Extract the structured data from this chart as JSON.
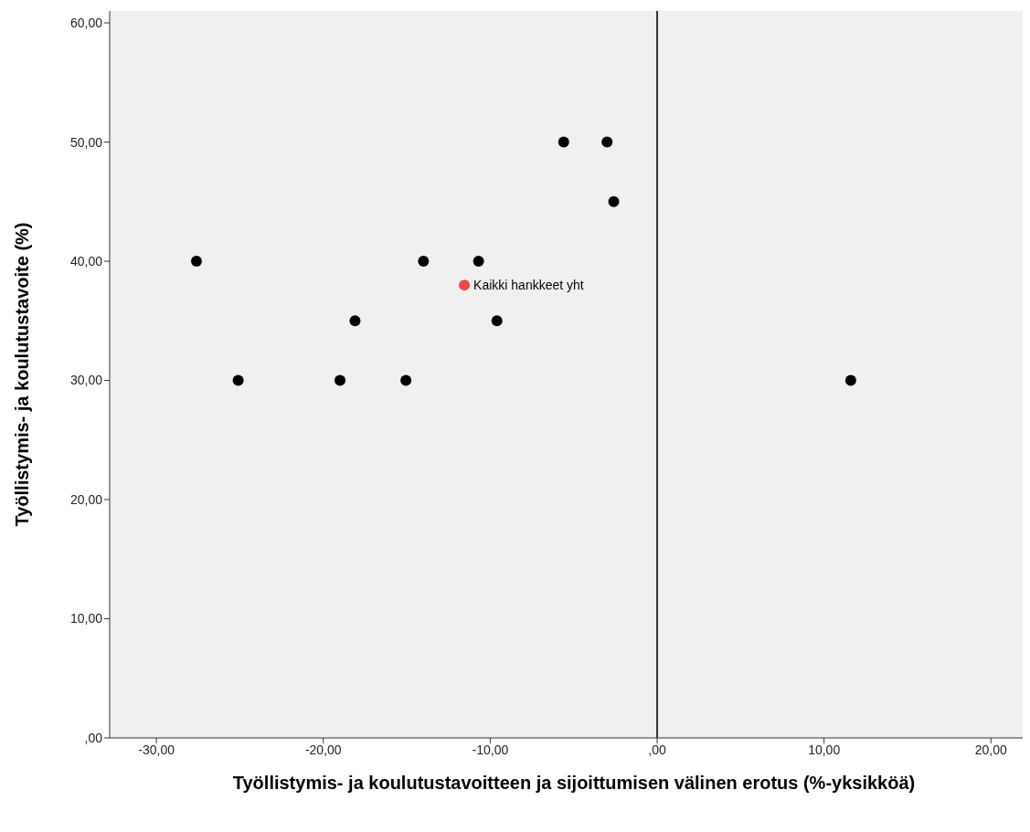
{
  "chart_data": {
    "type": "scatter",
    "xlabel": "Työllistymis- ja koulutustavoitteen ja sijoittumisen välinen erotus (%-yksikköä)",
    "ylabel": "Työllistymis- ja koulutustavoite (%)",
    "series": [
      {
        "color": "#000000",
        "x": [
          -27.6,
          -25.1,
          -19.0,
          -18.1,
          -15.05,
          -14.0,
          -10.7,
          -9.6,
          -5.6,
          -3.0,
          -2.6,
          11.6
        ],
        "values": [
          40,
          30,
          30,
          35,
          30,
          40,
          40,
          35,
          50,
          50,
          45,
          30
        ]
      },
      {
        "color": "#f04848",
        "x": [
          -11.55
        ],
        "values": [
          38.0
        ]
      }
    ],
    "xlim": [
      -32.8,
      21.9
    ],
    "ylim": [
      0,
      61
    ],
    "xticks": [
      {
        "value": -30,
        "label": "-30,00"
      },
      {
        "value": -20,
        "label": "-20,00"
      },
      {
        "value": -10,
        "label": "-10,00"
      },
      {
        "value": 0,
        "label": ",00"
      },
      {
        "value": 10,
        "label": "10,00"
      },
      {
        "value": 20,
        "label": "20,00"
      }
    ],
    "yticks": [
      {
        "value": 0,
        "label": ",00"
      },
      {
        "value": 10,
        "label": "10,00"
      },
      {
        "value": 20,
        "label": "20,00"
      },
      {
        "value": 30,
        "label": "30,00"
      },
      {
        "value": 40,
        "label": "40,00"
      },
      {
        "value": 50,
        "label": "50,00"
      },
      {
        "value": 60,
        "label": "60,00"
      }
    ],
    "ref_lines": [
      {
        "axis": "x",
        "value": 0,
        "color": "#333333"
      }
    ],
    "annotations": [
      {
        "text": "Kaikki hankkeet yht",
        "x": -11.55,
        "y": 38.0
      }
    ],
    "grid": false,
    "legend": false,
    "marker": "circle"
  }
}
